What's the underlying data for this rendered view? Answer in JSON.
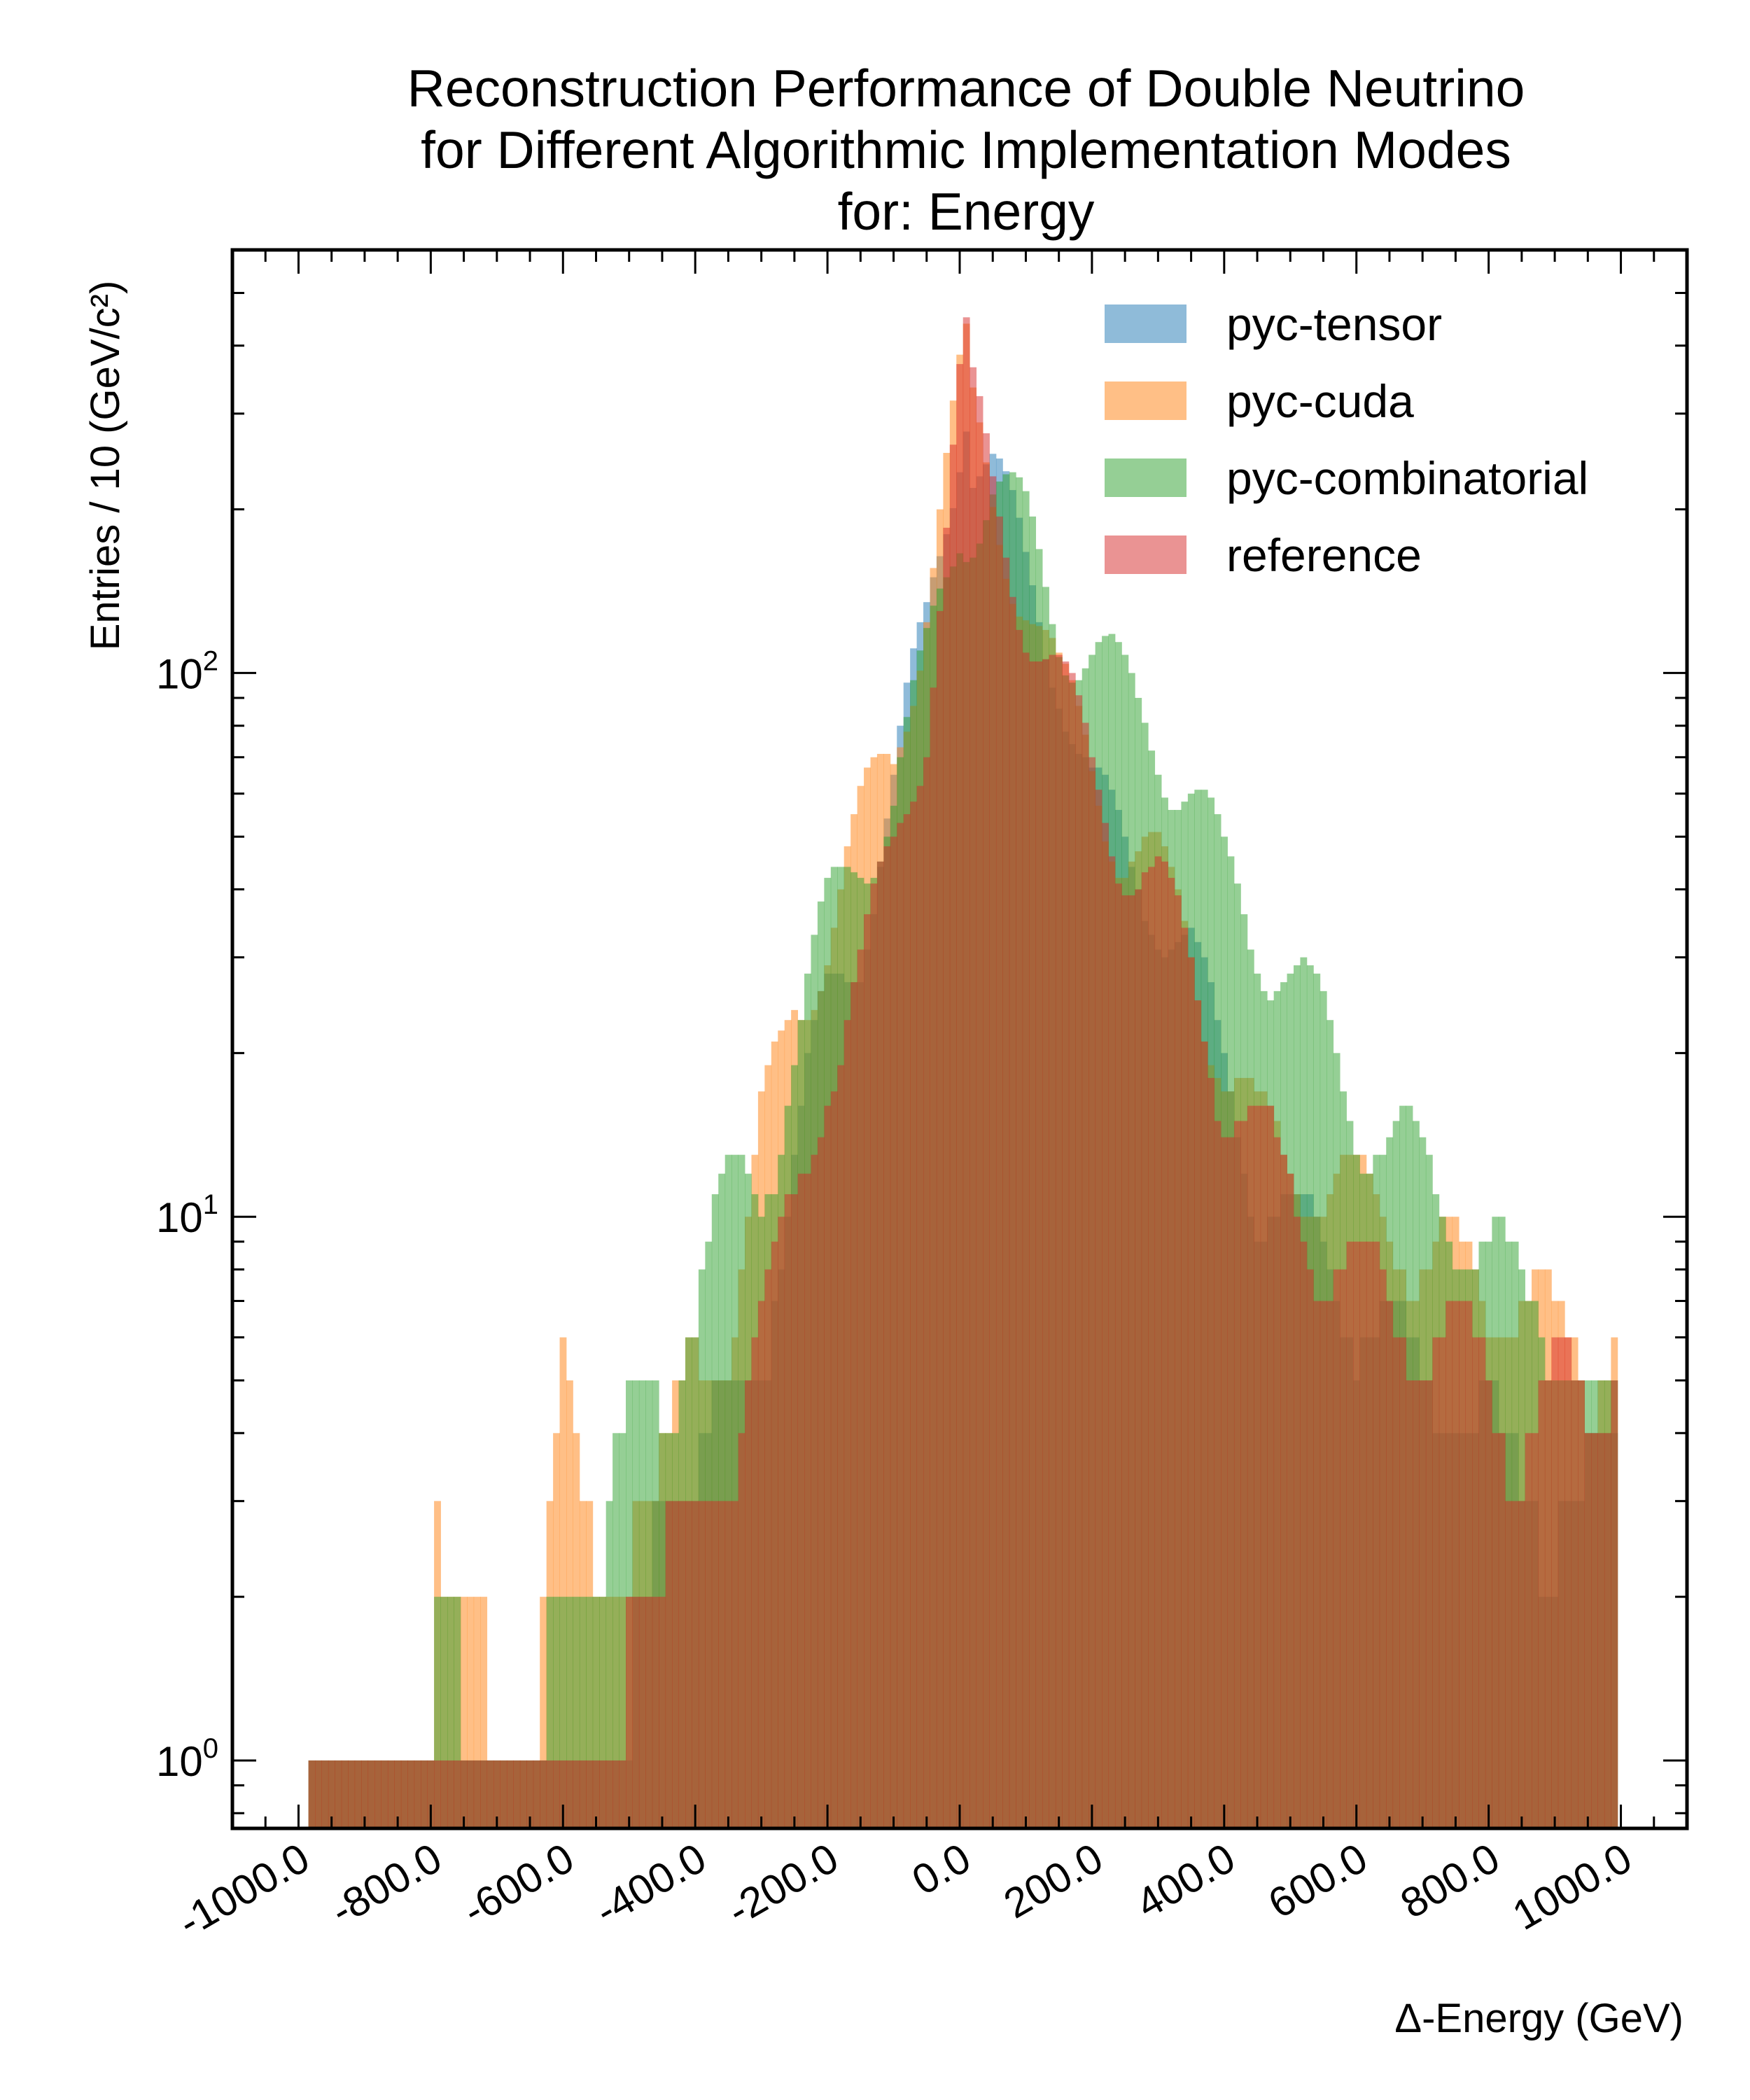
{
  "chart_data": {
    "type": "histogram",
    "title_lines": [
      "Reconstruction Performance of Double Neutrino",
      "for Different Algorithmic Implementation Modes",
      "for: Energy"
    ],
    "xlabel": "Δ-Energy (GeV)",
    "ylabel": "Entries  / 10 (GeV/c²)",
    "xlim": [
      -1100,
      1100
    ],
    "ylim": [
      0.75,
      600
    ],
    "yscale": "log",
    "x_ticks": [
      -1000,
      -800,
      -600,
      -400,
      -200,
      0,
      200,
      400,
      600,
      800,
      1000
    ],
    "x_tick_labels": [
      "-1000.0",
      "-800.0",
      "-600.0",
      "-400.0",
      "-200.0",
      "0.0",
      "200.0",
      "400.0",
      "600.0",
      "800.0",
      "1000.0"
    ],
    "y_ticks": [
      1,
      10,
      100
    ],
    "y_tick_labels": [
      {
        "base": "10",
        "exp": "0"
      },
      {
        "base": "10",
        "exp": "1"
      },
      {
        "base": "10",
        "exp": "2"
      }
    ],
    "bin_width": 10,
    "legend_position": "top-right",
    "grid": false,
    "series": [
      {
        "name": "pyc-tensor",
        "color": "#1f77b4",
        "points": [
          [
            -980,
            1
          ],
          [
            -800,
            1
          ],
          [
            -700,
            1
          ],
          [
            -600,
            1
          ],
          [
            -500,
            1
          ],
          [
            -480,
            2
          ],
          [
            -450,
            4
          ],
          [
            -400,
            3
          ],
          [
            -300,
            6
          ],
          [
            -200,
            25
          ],
          [
            -150,
            35
          ],
          [
            -100,
            60
          ],
          [
            -50,
            120
          ],
          [
            0,
            300
          ],
          [
            10,
            350
          ],
          [
            20,
            260
          ],
          [
            50,
            230
          ],
          [
            100,
            150
          ],
          [
            150,
            110
          ],
          [
            200,
            60
          ],
          [
            250,
            45
          ],
          [
            300,
            40
          ],
          [
            350,
            30
          ],
          [
            400,
            18
          ],
          [
            450,
            12
          ],
          [
            500,
            10
          ],
          [
            550,
            8
          ],
          [
            600,
            7
          ],
          [
            650,
            6
          ],
          [
            700,
            5
          ],
          [
            750,
            5
          ],
          [
            800,
            4
          ],
          [
            850,
            3
          ],
          [
            900,
            3
          ],
          [
            950,
            3
          ],
          [
            990,
            4
          ]
        ]
      },
      {
        "name": "pyc-cuda",
        "color": "#ff7f0e",
        "points": [
          [
            -980,
            1
          ],
          [
            -900,
            1
          ],
          [
            -800,
            1
          ],
          [
            -790,
            3
          ],
          [
            -750,
            2
          ],
          [
            -700,
            1
          ],
          [
            -650,
            1
          ],
          [
            -600,
            5
          ],
          [
            -550,
            2
          ],
          [
            -500,
            3
          ],
          [
            -450,
            3
          ],
          [
            -400,
            6
          ],
          [
            -350,
            6
          ],
          [
            -300,
            14
          ],
          [
            -250,
            24
          ],
          [
            -200,
            36
          ],
          [
            -150,
            52
          ],
          [
            -100,
            70
          ],
          [
            -50,
            150
          ],
          [
            0,
            320
          ],
          [
            10,
            360
          ],
          [
            20,
            280
          ],
          [
            50,
            210
          ],
          [
            100,
            150
          ],
          [
            150,
            90
          ],
          [
            200,
            70
          ],
          [
            250,
            50
          ],
          [
            300,
            42
          ],
          [
            350,
            32
          ],
          [
            400,
            20
          ],
          [
            450,
            14
          ],
          [
            500,
            13
          ],
          [
            550,
            12
          ],
          [
            600,
            11
          ],
          [
            650,
            10
          ],
          [
            700,
            9
          ],
          [
            750,
            8
          ],
          [
            800,
            7
          ],
          [
            850,
            8
          ],
          [
            900,
            6
          ],
          [
            950,
            5
          ],
          [
            990,
            7
          ]
        ]
      },
      {
        "name": "pyc-combinatorial",
        "color": "#2ca02c",
        "points": [
          [
            -980,
            1
          ],
          [
            -900,
            1
          ],
          [
            -800,
            1
          ],
          [
            -780,
            2
          ],
          [
            -700,
            1
          ],
          [
            -650,
            1
          ],
          [
            -600,
            2
          ],
          [
            -550,
            2
          ],
          [
            -500,
            4
          ],
          [
            -450,
            5
          ],
          [
            -400,
            7
          ],
          [
            -350,
            11
          ],
          [
            -300,
            12
          ],
          [
            -250,
            20
          ],
          [
            -200,
            35
          ],
          [
            -150,
            50
          ],
          [
            -100,
            60
          ],
          [
            -50,
            100
          ],
          [
            0,
            200
          ],
          [
            50,
            220
          ],
          [
            100,
            180
          ],
          [
            150,
            130
          ],
          [
            200,
            110
          ],
          [
            250,
            90
          ],
          [
            300,
            80
          ],
          [
            350,
            60
          ],
          [
            400,
            42
          ],
          [
            450,
            35
          ],
          [
            500,
            28
          ],
          [
            550,
            22
          ],
          [
            600,
            16
          ],
          [
            650,
            14
          ],
          [
            700,
            12
          ],
          [
            750,
            10
          ],
          [
            800,
            9
          ],
          [
            850,
            7
          ],
          [
            900,
            6
          ],
          [
            950,
            5
          ],
          [
            990,
            4
          ]
        ]
      },
      {
        "name": "reference",
        "color": "#d62728",
        "points": [
          [
            -980,
            1
          ],
          [
            -900,
            1
          ],
          [
            -850,
            1
          ],
          [
            -800,
            1
          ],
          [
            -750,
            1
          ],
          [
            -700,
            1
          ],
          [
            -650,
            1
          ],
          [
            -600,
            1
          ],
          [
            -550,
            1
          ],
          [
            -500,
            2
          ],
          [
            -450,
            2
          ],
          [
            -400,
            3
          ],
          [
            -350,
            4
          ],
          [
            -300,
            6
          ],
          [
            -250,
            10
          ],
          [
            -200,
            20
          ],
          [
            -150,
            28
          ],
          [
            -100,
            45
          ],
          [
            -50,
            90
          ],
          [
            0,
            330
          ],
          [
            10,
            380
          ],
          [
            20,
            300
          ],
          [
            50,
            210
          ],
          [
            100,
            140
          ],
          [
            150,
            95
          ],
          [
            200,
            65
          ],
          [
            250,
            50
          ],
          [
            300,
            40
          ],
          [
            350,
            28
          ],
          [
            400,
            18
          ],
          [
            450,
            14
          ],
          [
            500,
            11
          ],
          [
            550,
            9
          ],
          [
            600,
            8
          ],
          [
            650,
            7
          ],
          [
            700,
            6
          ],
          [
            750,
            6
          ],
          [
            800,
            5
          ],
          [
            850,
            4
          ],
          [
            900,
            5
          ],
          [
            950,
            4
          ],
          [
            990,
            6
          ]
        ]
      }
    ]
  }
}
